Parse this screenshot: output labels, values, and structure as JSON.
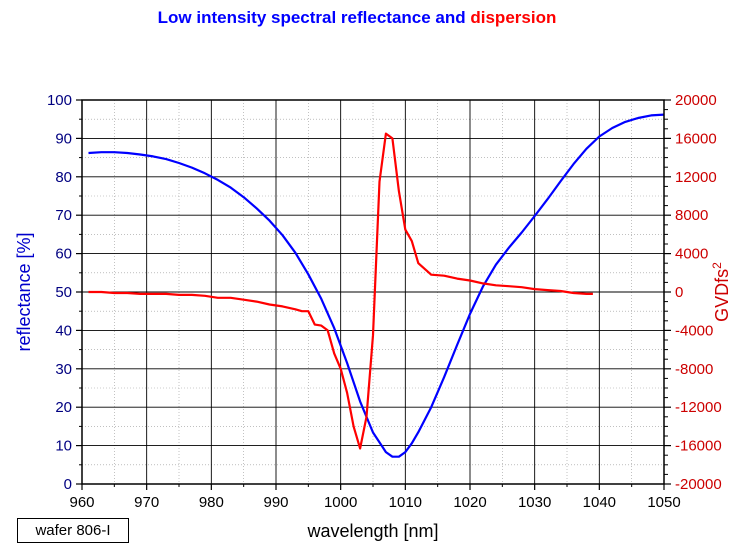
{
  "chart_data": {
    "type": "line",
    "title_part1": "Low intensity spectral reflectance and ",
    "title_part2": "dispersion",
    "xlabel": "wavelength [nm]",
    "ylabel": "reflectance [%]",
    "y2label_base": "GVDfs",
    "y2label_sup": "2",
    "xlim": [
      960,
      1050
    ],
    "ylim": [
      0,
      100
    ],
    "y2lim": [
      -20000,
      20000
    ],
    "x_ticks": [
      "960",
      "970",
      "980",
      "990",
      "1000",
      "1010",
      "1020",
      "1030",
      "1040",
      "1050"
    ],
    "y_ticks": [
      "0",
      "10",
      "20",
      "30",
      "40",
      "50",
      "60",
      "70",
      "80",
      "90",
      "100"
    ],
    "y2_ticks": [
      "-20000",
      "-16000",
      "-12000",
      "-8000",
      "-4000",
      "0",
      "4000",
      "8000",
      "12000",
      "16000",
      "20000"
    ],
    "colors": {
      "reflectance": "#0000ff",
      "dispersion": "#ff0000",
      "title1": "#0000ff",
      "title2": "#ff0000"
    },
    "series": [
      {
        "name": "reflectance",
        "axis": "left",
        "color": "#0000ff",
        "x": [
          961,
          963,
          965,
          967,
          969,
          971,
          973,
          975,
          977,
          979,
          981,
          983,
          985,
          987,
          989,
          991,
          993,
          995,
          997,
          999,
          1001,
          1003,
          1005,
          1007,
          1008,
          1009,
          1010,
          1011,
          1012,
          1014,
          1016,
          1018,
          1020,
          1022,
          1024,
          1026,
          1028,
          1030,
          1032,
          1034,
          1036,
          1038,
          1040,
          1042,
          1044,
          1046,
          1048,
          1050
        ],
        "y": [
          86.2,
          86.4,
          86.4,
          86.2,
          85.8,
          85.3,
          84.6,
          83.6,
          82.4,
          80.9,
          79.2,
          77.2,
          74.7,
          71.8,
          68.6,
          64.8,
          60.2,
          54.6,
          48.2,
          40.6,
          31.5,
          21.5,
          13.4,
          8.3,
          7.1,
          7.1,
          8.3,
          10.6,
          13.5,
          20.0,
          27.8,
          36.2,
          44.3,
          51.4,
          57.1,
          61.5,
          65.5,
          69.8,
          74.2,
          78.8,
          83.3,
          87.3,
          90.5,
          92.7,
          94.3,
          95.3,
          96.0,
          96.2
        ]
      },
      {
        "name": "dispersion",
        "axis": "right",
        "color": "#ff0000",
        "x": [
          961,
          963,
          965,
          967,
          969,
          971,
          973,
          975,
          977,
          979,
          981,
          983,
          985,
          987,
          989,
          991,
          993,
          994,
          995,
          996,
          997,
          998,
          999,
          1000,
          1001,
          1002,
          1003,
          1004,
          1005,
          1006,
          1007,
          1008,
          1009,
          1010,
          1011,
          1012,
          1014,
          1016,
          1018,
          1020,
          1022,
          1024,
          1026,
          1028,
          1030,
          1032,
          1034,
          1036,
          1038,
          1039
        ],
        "y": [
          0,
          0,
          -100,
          -100,
          -200,
          -200,
          -200,
          -300,
          -300,
          -400,
          -600,
          -600,
          -800,
          -1000,
          -1300,
          -1500,
          -1800,
          -2000,
          -2000,
          -3400,
          -3500,
          -4000,
          -6400,
          -8000,
          -10500,
          -14000,
          -16300,
          -13000,
          -4500,
          11500,
          16500,
          16000,
          10500,
          6500,
          5300,
          3000,
          1800,
          1700,
          1400,
          1200,
          900,
          700,
          600,
          500,
          300,
          200,
          100,
          -100,
          -200,
          -200
        ]
      }
    ]
  },
  "footer": {
    "sample_label": "wafer 806-I"
  }
}
